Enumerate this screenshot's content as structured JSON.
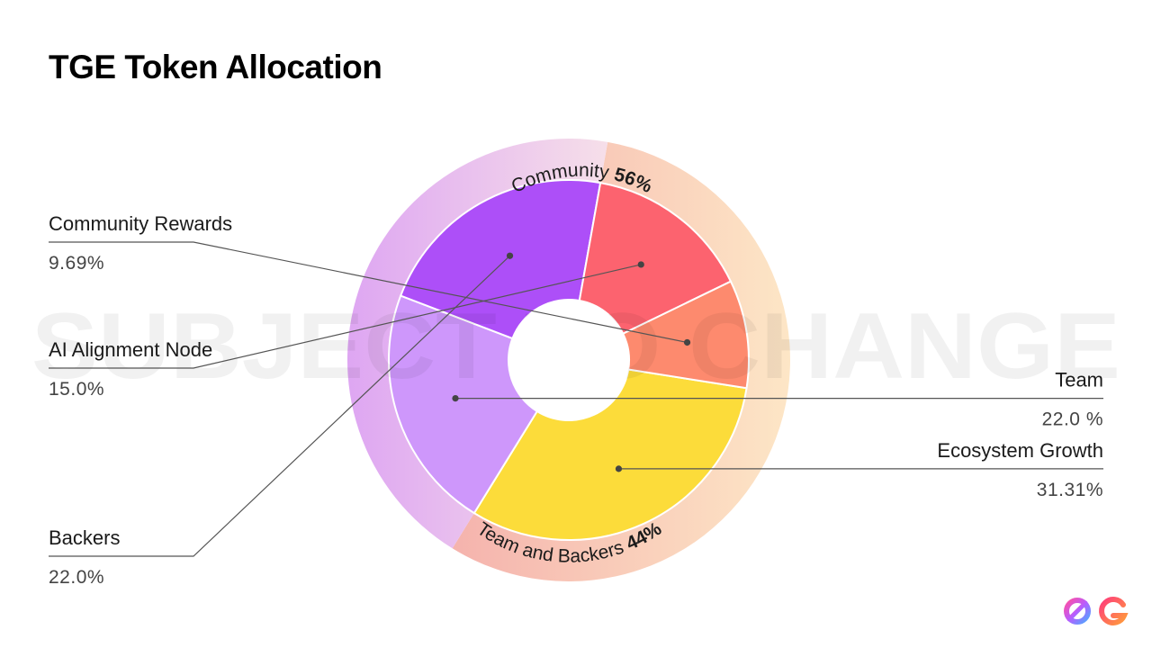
{
  "title": "TGE Token Allocation",
  "watermark": "SUBJECT TO CHANGE",
  "chart_data": {
    "type": "pie",
    "style": "nested donut",
    "title": "TGE Token Allocation",
    "groups": [
      {
        "name": "Community",
        "value_label": "56%",
        "value": 56,
        "color": "#f6c3b0",
        "color_end": "#fde2c4",
        "label_color": "#e8a79b"
      },
      {
        "name": "Team and Backers",
        "value_label": "44%",
        "value": 44,
        "color": "#e5b2f2",
        "color_end": "#f5dbe8"
      }
    ],
    "slices": [
      {
        "name": "Ecosystem Growth",
        "value": 31.31,
        "value_label": "31.31%",
        "group": "Community",
        "color": "#fcdc3a",
        "label_side": "right"
      },
      {
        "name": "Team",
        "value": 22.0,
        "value_label": "22.0 %",
        "group": "Team and Backers",
        "color": "#ce97fb",
        "label_side": "right"
      },
      {
        "name": "Backers",
        "value": 22.0,
        "value_label": "22.0%",
        "group": "Team and Backers",
        "color": "#ad4ff8",
        "label_side": "left"
      },
      {
        "name": "AI Alignment Node",
        "value": 15.0,
        "value_label": "15.0%",
        "group": "Community",
        "color": "#fc636f",
        "label_side": "left"
      },
      {
        "name": "Community Rewards",
        "value": 9.69,
        "value_label": "9.69%",
        "group": "Community",
        "color": "#fd8a6e",
        "label_side": "left"
      }
    ],
    "legend": "none"
  },
  "logo": {
    "text": "0G"
  }
}
